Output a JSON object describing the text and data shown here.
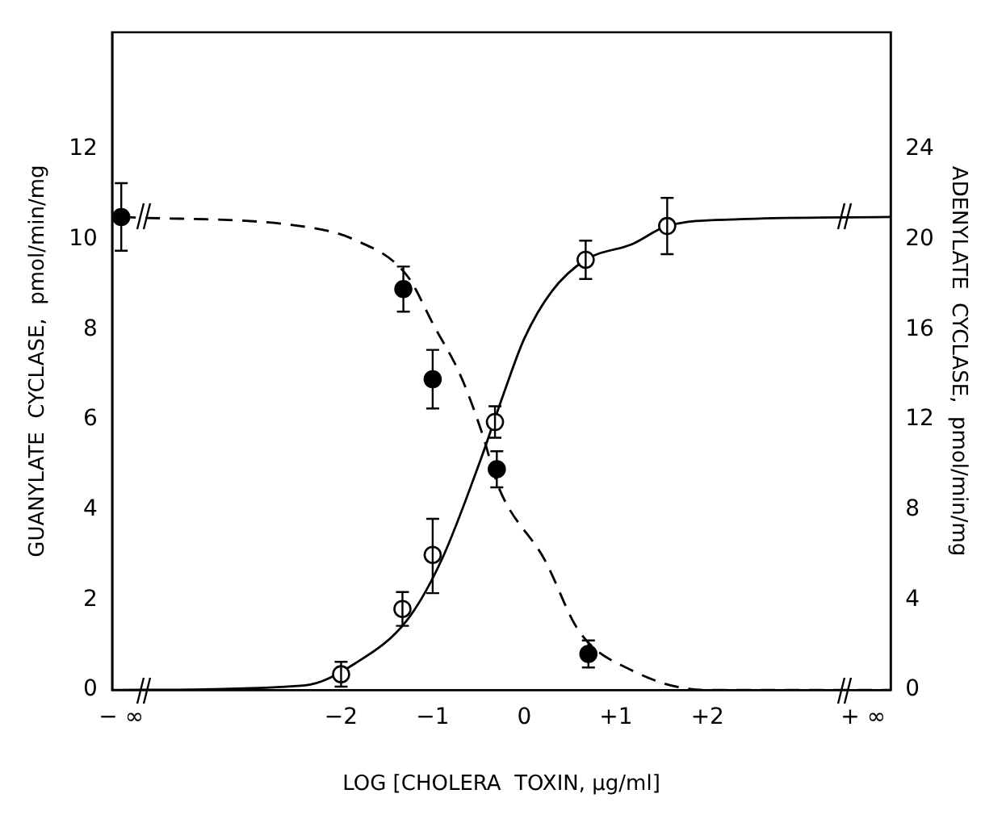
{
  "chart_data": {
    "type": "scatter",
    "xlabel": "LOG [CHOLERA  TOXIN, μg/ml]",
    "ylabel": "GUANYLATE  CYCLASE,  pmol/min/mg",
    "y2label": "ADENYLATE  CYCLASE,  pmol/min/mg",
    "xlim": [
      -4.5,
      4
    ],
    "xticks": [
      {
        "value": -4.4,
        "label": "− ∞"
      },
      {
        "value": -2,
        "label": "−2"
      },
      {
        "value": -1,
        "label": "−1"
      },
      0,
      {
        "value": 1,
        "label": "+1"
      },
      {
        "value": 2,
        "label": "+2"
      },
      {
        "value": 3.7,
        "label": "+ ∞"
      }
    ],
    "ylim": [
      0,
      14.6
    ],
    "yticks": [
      0,
      2,
      4,
      6,
      8,
      10,
      12
    ],
    "y2lim": [
      0,
      29.2
    ],
    "y2ticks": [
      0,
      4,
      8,
      12,
      16,
      20,
      24
    ],
    "grid": false,
    "legend": false,
    "marker": "circle",
    "series": [
      {
        "type": "scatter",
        "color": "#000000",
        "x": [
          -4.4,
          -1.32,
          -1.0,
          -0.3,
          0.7
        ],
        "values": [
          10.5,
          8.9,
          6.9,
          4.9,
          0.8
        ],
        "errors": [
          0.75,
          0.5,
          0.65,
          0.4,
          0.3
        ]
      },
      {
        "type": "scatter",
        "axis": "y2",
        "color": "#000000",
        "x": [
          -2,
          -1.33,
          -1.0,
          -0.32,
          0.67,
          1.56
        ],
        "values": [
          0.7,
          3.6,
          6.0,
          11.9,
          19.1,
          20.6
        ],
        "errors": [
          0.55,
          0.75,
          [
            4.3,
            7.6
          ],
          0.7,
          0.85,
          1.25
        ]
      },
      {
        "type": "line",
        "line_style": "dashed",
        "marker": "none",
        "color": "#000000",
        "x": [
          -4.4,
          -2.45,
          -1.86,
          -1.28,
          -0.99,
          -0.7,
          -0.46,
          -0.28,
          0.22,
          0.6,
          1.16,
          1.98,
          4
        ],
        "values": [
          10.5,
          10.3,
          10.0,
          9.2,
          8.1,
          7.0,
          5.7,
          4.5,
          2.9,
          1.3,
          0.45,
          0,
          0
        ]
      },
      {
        "type": "line",
        "axis": "y2",
        "line_style": "solid",
        "marker": "none",
        "color": "#000000",
        "x": [
          -4.5,
          -2.41,
          -1.84,
          -1.28,
          -0.9,
          -0.47,
          -0.23,
          0,
          0.3,
          0.67,
          1.18,
          1.56,
          2.35,
          4
        ],
        "values": [
          0,
          0.2,
          1.2,
          3.1,
          5.8,
          10.3,
          13.1,
          15.6,
          17.7,
          19.1,
          19.8,
          20.6,
          20.9,
          21.0
        ]
      }
    ]
  }
}
